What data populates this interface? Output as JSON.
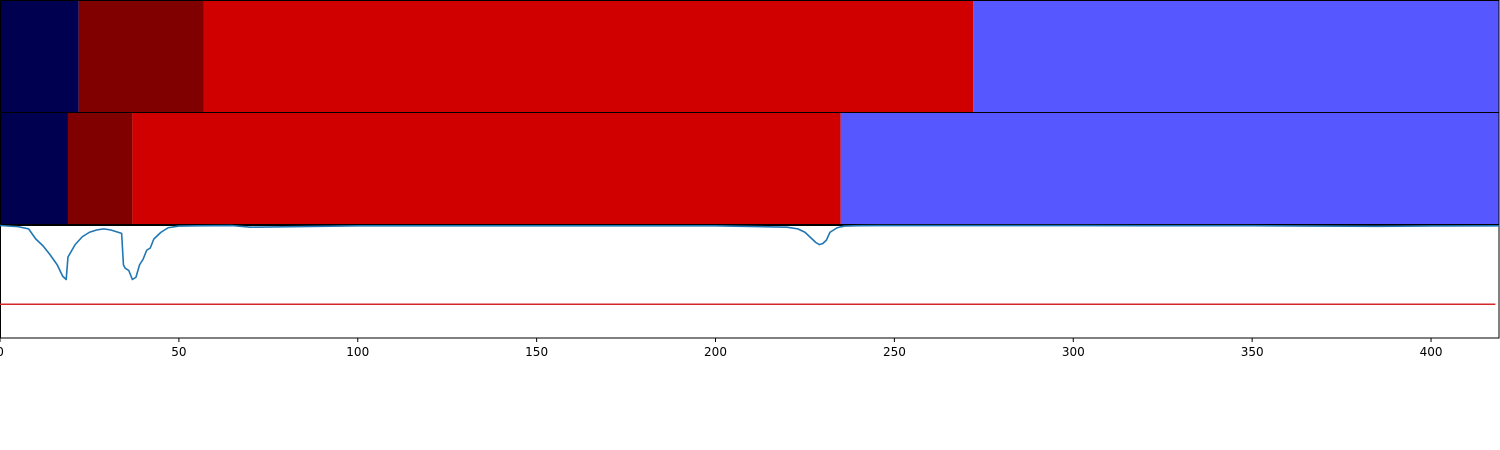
{
  "chart_data": {
    "type": "segmentation-timeline",
    "xlim": [
      0,
      419
    ],
    "x_ticks": [
      "0",
      "50",
      "100",
      "150",
      "200",
      "250",
      "300",
      "350",
      "400"
    ],
    "colors": {
      "phase_1": "#000050",
      "phase_2": "#800000",
      "phase_3": "#d10000",
      "phase_4": "#5757ff",
      "curve": "#1f77b4",
      "threshold": "#d62728"
    },
    "segment_rows": [
      {
        "segments": [
          {
            "start": 0,
            "end": 22,
            "color_key": "phase_1"
          },
          {
            "start": 22,
            "end": 57,
            "color_key": "phase_2"
          },
          {
            "start": 57,
            "end": 272,
            "color_key": "phase_3"
          },
          {
            "start": 272,
            "end": 419,
            "color_key": "phase_4"
          }
        ]
      },
      {
        "segments": [
          {
            "start": 0,
            "end": 19,
            "color_key": "phase_1"
          },
          {
            "start": 19,
            "end": 37,
            "color_key": "phase_2"
          },
          {
            "start": 37,
            "end": 235,
            "color_key": "phase_3"
          },
          {
            "start": 235,
            "end": 419,
            "color_key": "phase_4"
          }
        ]
      }
    ],
    "signal_panel": {
      "ylim": [
        0,
        1
      ],
      "threshold": 0.3,
      "series": {
        "x": [
          0,
          5,
          8,
          10,
          12,
          14,
          16,
          17.5,
          18.5,
          19,
          21,
          23,
          25,
          27,
          29,
          31,
          33,
          34,
          34.5,
          35,
          36,
          37,
          38,
          39,
          40,
          41,
          42,
          43,
          45,
          47,
          50,
          55,
          65,
          70,
          100,
          200,
          220,
          223,
          225,
          226,
          227,
          228,
          229,
          230,
          231,
          232,
          233,
          234,
          236,
          240,
          245,
          260,
          300,
          350,
          385,
          400,
          419
        ],
        "y": [
          1.0,
          0.99,
          0.97,
          0.88,
          0.82,
          0.74,
          0.65,
          0.55,
          0.52,
          0.72,
          0.83,
          0.9,
          0.94,
          0.96,
          0.97,
          0.96,
          0.94,
          0.93,
          0.65,
          0.62,
          0.6,
          0.52,
          0.54,
          0.65,
          0.7,
          0.78,
          0.8,
          0.88,
          0.94,
          0.98,
          0.995,
          0.997,
          0.999,
          0.985,
          0.997,
          0.997,
          0.985,
          0.97,
          0.94,
          0.91,
          0.88,
          0.85,
          0.83,
          0.84,
          0.87,
          0.94,
          0.96,
          0.98,
          0.995,
          0.998,
          0.999,
          0.999,
          0.999,
          0.998,
          0.993,
          0.996,
          0.997
        ]
      }
    }
  }
}
